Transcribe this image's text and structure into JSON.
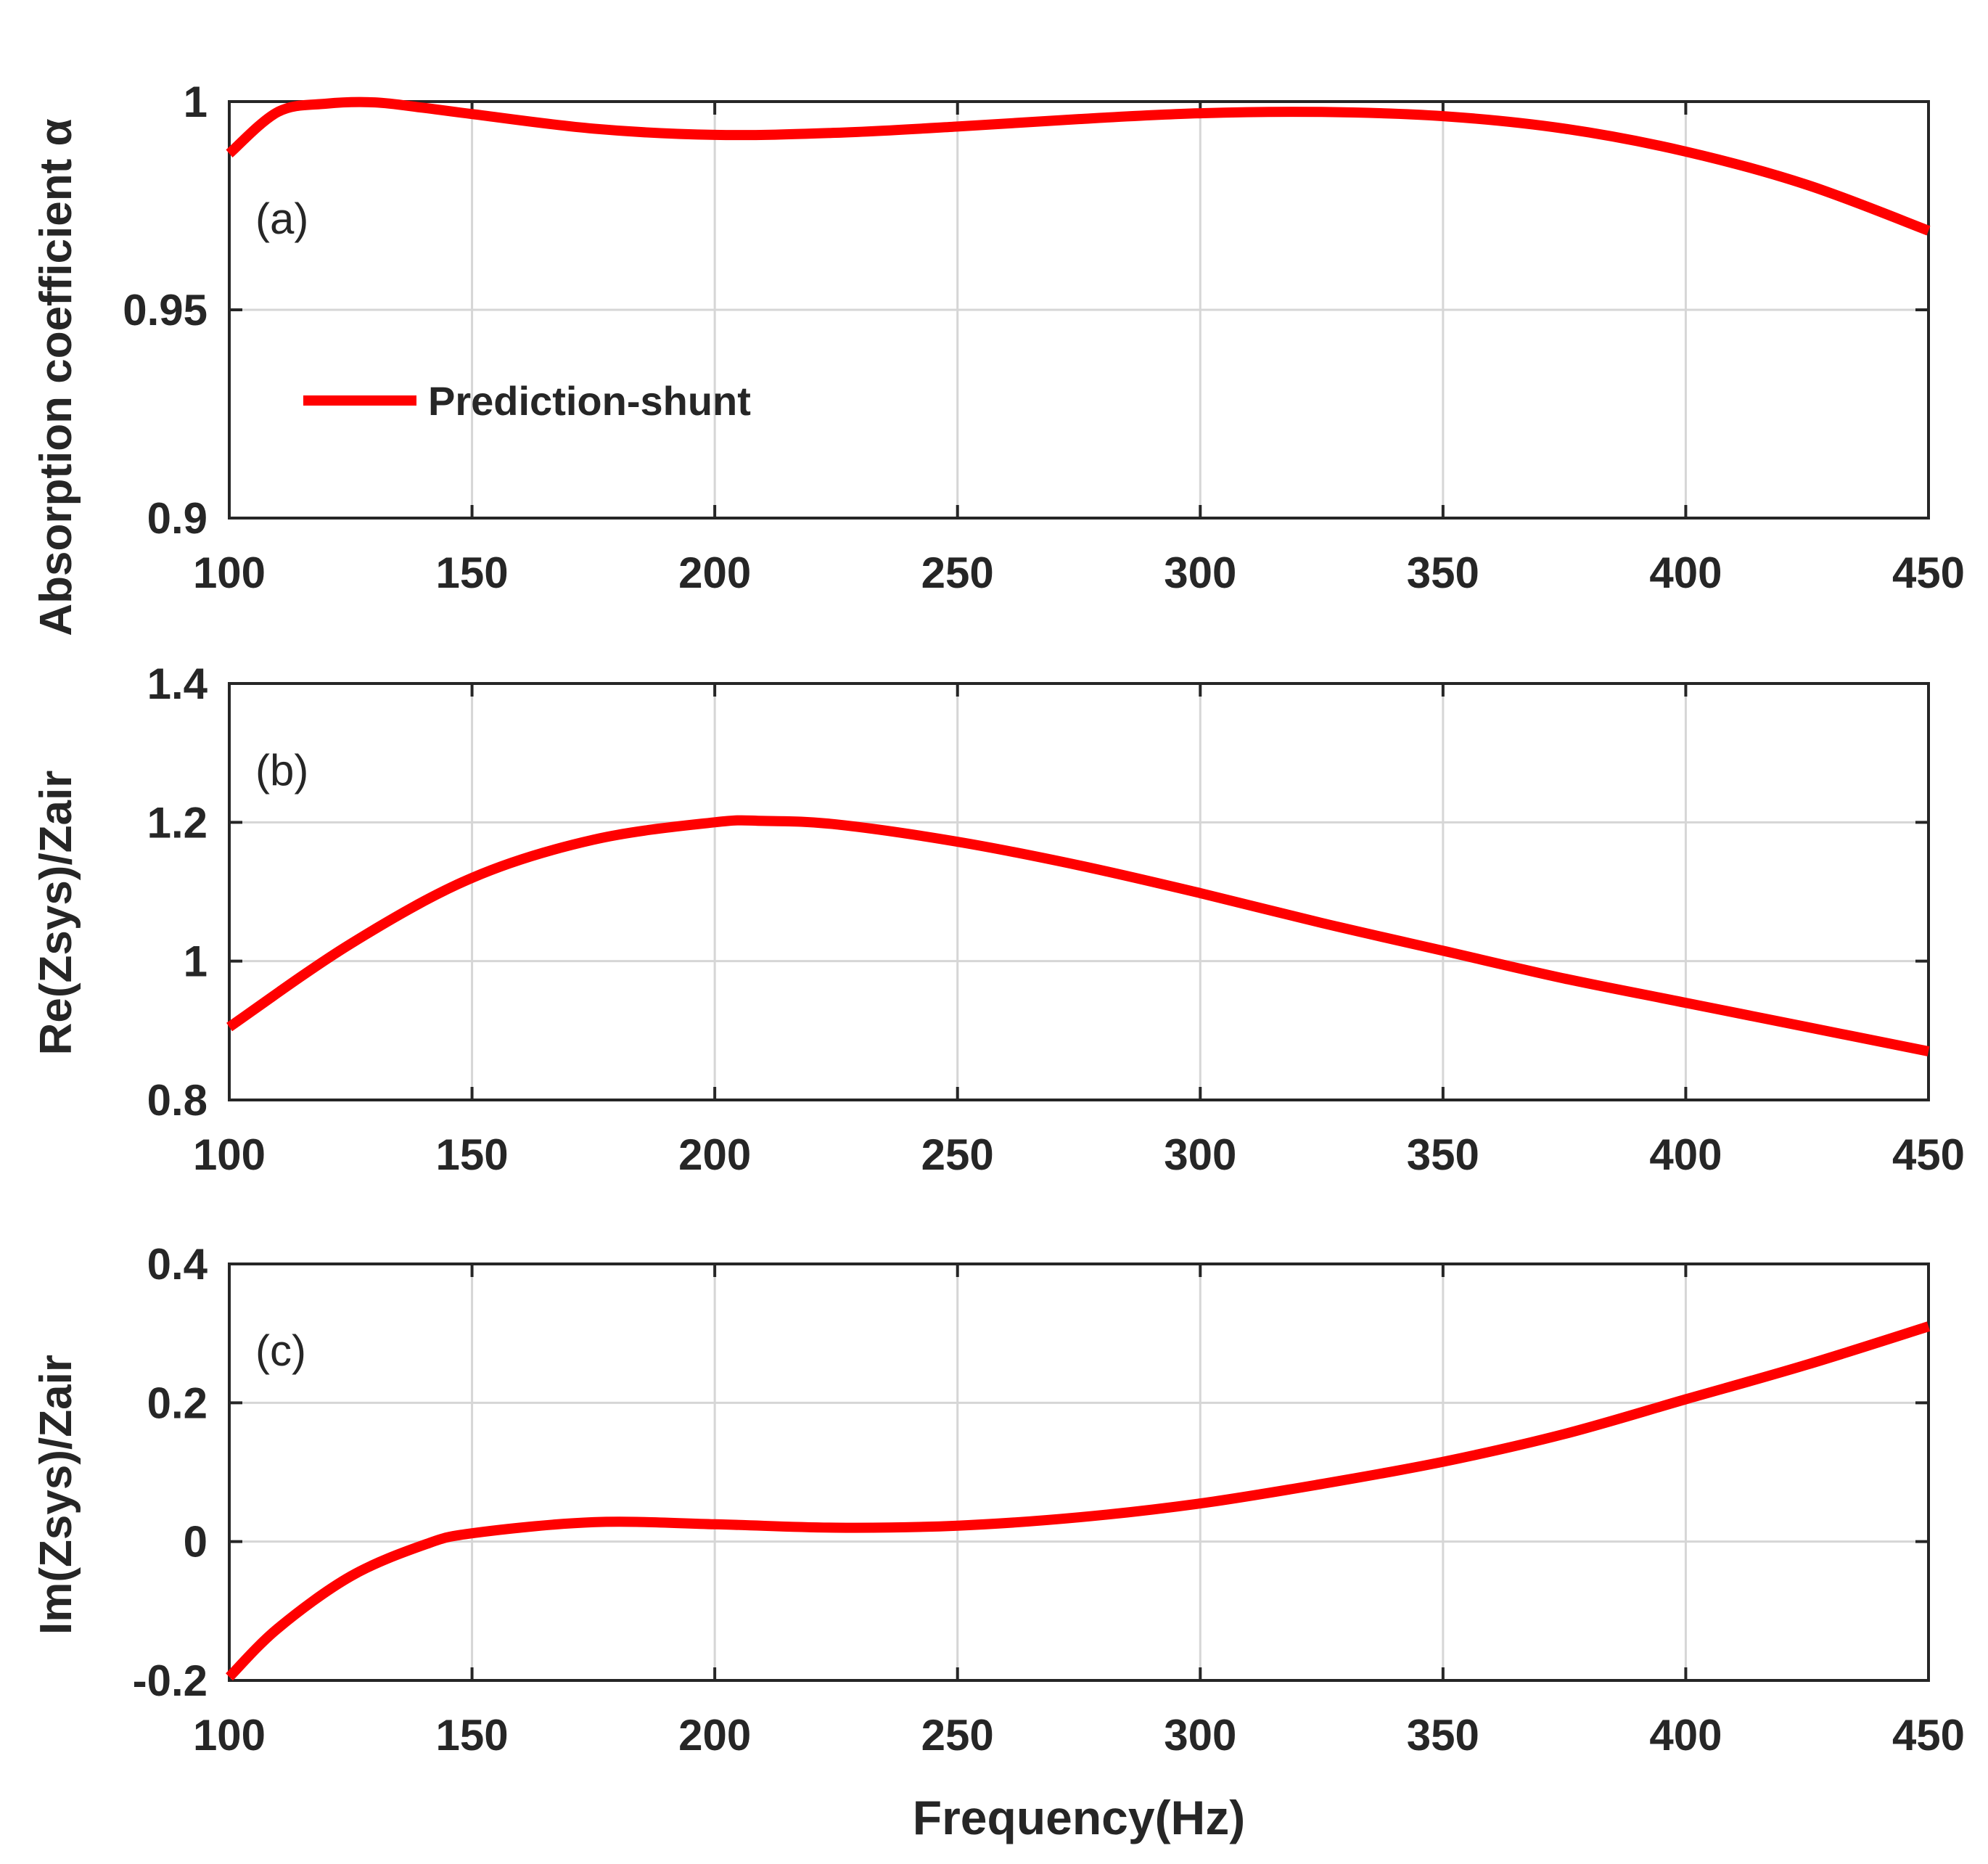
{
  "chart_data": [
    {
      "type": "line",
      "panel_label": "(a)",
      "ylabel": "Absorption coefficient α",
      "xlabel": "",
      "xlim": [
        100,
        450
      ],
      "ylim": [
        0.9,
        1.0
      ],
      "xticks": [
        100,
        150,
        200,
        250,
        300,
        350,
        400,
        450
      ],
      "xtick_labels": [
        "100",
        "150",
        "200",
        "250",
        "300",
        "350",
        "400",
        "450"
      ],
      "yticks": [
        0.9,
        0.95,
        1.0
      ],
      "ytick_labels": [
        "0.9",
        "0.95",
        "1"
      ],
      "grid": true,
      "legend": {
        "position": "left",
        "entries": [
          "Prediction-shunt"
        ]
      },
      "series": [
        {
          "name": "Prediction-shunt",
          "color": "#ff0000",
          "x": [
            100,
            110,
            120,
            130,
            140,
            150,
            175,
            200,
            225,
            250,
            275,
            300,
            325,
            350,
            375,
            400,
            425,
            450
          ],
          "y": [
            0.9875,
            0.9975,
            0.9995,
            0.9998,
            0.9985,
            0.997,
            0.9935,
            0.992,
            0.9925,
            0.994,
            0.9958,
            0.9972,
            0.9975,
            0.9965,
            0.9935,
            0.988,
            0.98,
            0.969
          ]
        }
      ]
    },
    {
      "type": "line",
      "panel_label": "(b)",
      "ylabel": "Re(Zsys)/Zair",
      "xlabel": "",
      "xlim": [
        100,
        450
      ],
      "ylim": [
        0.8,
        1.4
      ],
      "xticks": [
        100,
        150,
        200,
        250,
        300,
        350,
        400,
        450
      ],
      "xtick_labels": [
        "100",
        "150",
        "200",
        "250",
        "300",
        "350",
        "400",
        "450"
      ],
      "yticks": [
        0.8,
        1.0,
        1.2,
        1.4
      ],
      "ytick_labels": [
        "0.8",
        "1",
        "1.2",
        "1.4"
      ],
      "grid": true,
      "series": [
        {
          "name": "Prediction-shunt",
          "color": "#ff0000",
          "x": [
            100,
            125,
            150,
            175,
            200,
            210,
            225,
            250,
            275,
            300,
            325,
            350,
            375,
            400,
            425,
            450
          ],
          "y": [
            0.905,
            1.025,
            1.12,
            1.175,
            1.2,
            1.202,
            1.197,
            1.172,
            1.138,
            1.098,
            1.055,
            1.015,
            0.975,
            0.94,
            0.905,
            0.87
          ]
        }
      ]
    },
    {
      "type": "line",
      "panel_label": "(c)",
      "ylabel": "Im(Zsys)/Zair",
      "xlabel": "Frequency(Hz)",
      "xlim": [
        100,
        450
      ],
      "ylim": [
        -0.2,
        0.4
      ],
      "xticks": [
        100,
        150,
        200,
        250,
        300,
        350,
        400,
        450
      ],
      "xtick_labels": [
        "100",
        "150",
        "200",
        "250",
        "300",
        "350",
        "400",
        "450"
      ],
      "yticks": [
        -0.2,
        0.0,
        0.2,
        0.4
      ],
      "ytick_labels": [
        "-0.2",
        "0",
        "0.2",
        "0.4"
      ],
      "grid": true,
      "series": [
        {
          "name": "Prediction-shunt",
          "color": "#ff0000",
          "x": [
            100,
            110,
            125,
            140,
            150,
            175,
            200,
            225,
            250,
            275,
            300,
            325,
            350,
            375,
            400,
            425,
            450
          ],
          "y": [
            -0.195,
            -0.125,
            -0.05,
            -0.005,
            0.012,
            0.028,
            0.025,
            0.02,
            0.023,
            0.035,
            0.055,
            0.083,
            0.115,
            0.155,
            0.205,
            0.255,
            0.31
          ]
        }
      ]
    }
  ]
}
